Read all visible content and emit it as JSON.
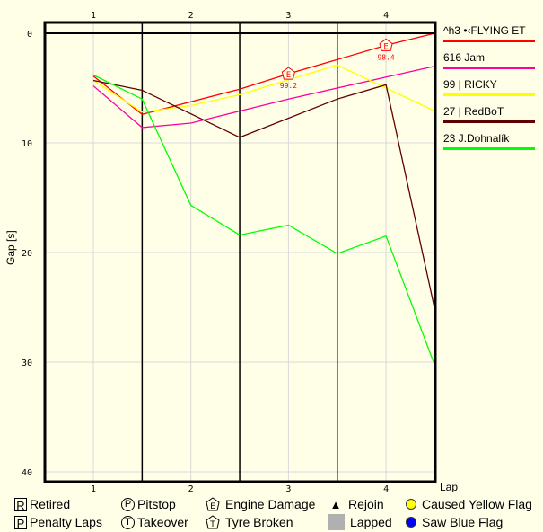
{
  "chart_data": {
    "type": "line",
    "title": "",
    "xlabel": "Lap",
    "ylabel": "Gap [s]",
    "x_ticks": [
      "1",
      "2",
      "3",
      "4"
    ],
    "y_ticks": [
      "0",
      "10",
      "20",
      "30",
      "40"
    ],
    "ylim": [
      0,
      40
    ],
    "y_inverted": true,
    "grid": true,
    "legend_position": "right",
    "series": [
      {
        "name": "^h3 •‹FLYING ET",
        "color": "#ff0000",
        "points": [
          [
            1,
            3.9
          ],
          [
            1.5,
            7.4
          ],
          [
            2.5,
            5.1
          ],
          [
            3,
            3.7
          ],
          [
            4,
            1.1
          ],
          [
            4.5,
            0.0
          ]
        ]
      },
      {
        "name": "616 Jam",
        "color": "#ff00a0",
        "points": [
          [
            1,
            4.8
          ],
          [
            1.5,
            8.6
          ],
          [
            2,
            8.2
          ],
          [
            3,
            6.0
          ],
          [
            4.5,
            3.0
          ]
        ]
      },
      {
        "name": "99 | RICKY",
        "color": "#ffff00",
        "points": [
          [
            1,
            4.3
          ],
          [
            1.5,
            7.2
          ],
          [
            2,
            6.6
          ],
          [
            2.5,
            5.6
          ],
          [
            3.5,
            2.9
          ],
          [
            4.5,
            7.1
          ]
        ]
      },
      {
        "name": "27 | RedBoT",
        "color": "#600000",
        "points": [
          [
            1,
            4.3
          ],
          [
            1.5,
            5.2
          ],
          [
            2.5,
            9.5
          ],
          [
            3.5,
            6.0
          ],
          [
            4,
            4.7
          ],
          [
            4.5,
            25.2
          ]
        ]
      },
      {
        "name": "23 J.Dohnalík",
        "color": "#00ff00",
        "points": [
          [
            1,
            3.8
          ],
          [
            1.5,
            6.0
          ],
          [
            2,
            15.7
          ],
          [
            2.5,
            18.4
          ],
          [
            3,
            17.5
          ],
          [
            3.5,
            20.1
          ],
          [
            4,
            18.5
          ],
          [
            4.5,
            30.3
          ]
        ]
      }
    ],
    "annotations": [
      {
        "type": "Engine Damage",
        "symbol": "E",
        "series": "^h3 •‹FLYING ET",
        "x": 3,
        "y": 3.7,
        "label": "99.2"
      },
      {
        "type": "Engine Damage",
        "symbol": "E",
        "series": "^h3 •‹FLYING ET",
        "x": 4,
        "y": 1.1,
        "label": "98.4"
      }
    ]
  },
  "axis": {
    "xlabel": "Lap",
    "ylabel": "Gap [s]"
  },
  "legend": [
    {
      "name": "^h3 •‹FLYING ET",
      "color": "#ff0000"
    },
    {
      "name": "616 Jam",
      "color": "#ff00a0"
    },
    {
      "name": "99 | RICKY",
      "color": "#ffff00"
    },
    {
      "name": "27 | RedBoT",
      "color": "#600000"
    },
    {
      "name": "23 J.Dohnalík",
      "color": "#00ff00"
    }
  ],
  "key": {
    "retired": {
      "symbol": "R",
      "label": "Retired"
    },
    "penalty": {
      "symbol": "P",
      "label": "Penalty Laps"
    },
    "pitstop": {
      "symbol": "P",
      "label": "Pitstop"
    },
    "takeover": {
      "symbol": "T",
      "label": "Takeover"
    },
    "engine": {
      "symbol": "E",
      "label": "Engine Damage"
    },
    "tyre": {
      "symbol": "T",
      "label": "Tyre Broken"
    },
    "rejoin": {
      "symbol": "▲",
      "label": "Rejoin"
    },
    "lapped": {
      "label": "Lapped"
    },
    "yellow": {
      "label": "Caused Yellow Flag",
      "color": "#ffff00"
    },
    "blue": {
      "label": "Saw Blue Flag",
      "color": "#0000ff"
    }
  }
}
